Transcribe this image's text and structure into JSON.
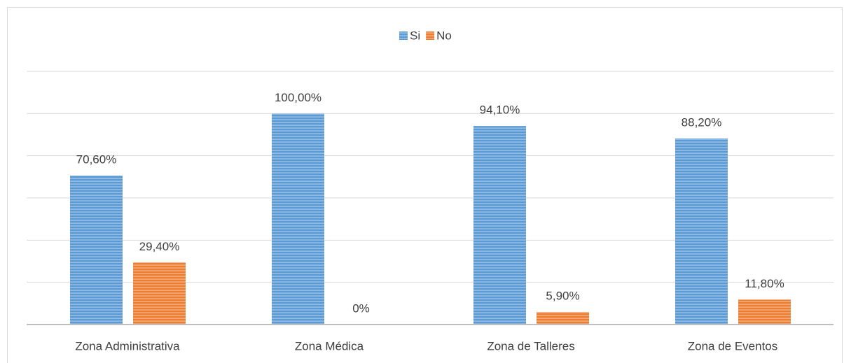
{
  "chart_data": {
    "type": "bar",
    "categories": [
      "Zona Administrativa",
      "Zona Médica",
      "Zona de Talleres",
      "Zona de Eventos"
    ],
    "series": [
      {
        "name": "Si",
        "color": "#5b9bd5",
        "values": [
          70.6,
          100,
          94.1,
          88.2
        ],
        "value_labels": [
          "70,60%",
          "100,00%",
          "94,10%",
          "88,20%"
        ]
      },
      {
        "name": "No",
        "color": "#ed7d31",
        "values": [
          29.4,
          0,
          5.9,
          11.8
        ],
        "value_labels": [
          "29,40%",
          "0%",
          "5,90%",
          "11,80%"
        ]
      }
    ],
    "ylim": [
      0,
      120
    ],
    "yticks": [
      0,
      20,
      40,
      60,
      80,
      100,
      120
    ],
    "grid": true,
    "legend": "top"
  }
}
